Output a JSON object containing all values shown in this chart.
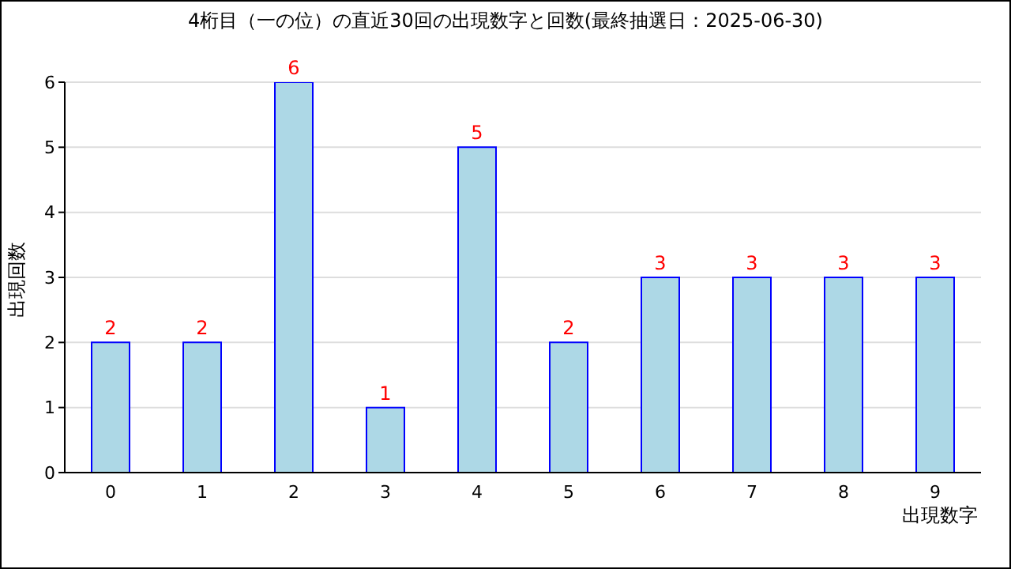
{
  "chart_data": {
    "type": "bar",
    "title": "4桁目（一の位）の直近30回の出現数字と回数(最終抽選日：2025-06-30)",
    "xlabel": "出現数字",
    "ylabel": "出現回数",
    "categories": [
      "0",
      "1",
      "2",
      "3",
      "4",
      "5",
      "6",
      "7",
      "8",
      "9"
    ],
    "series": [
      {
        "color": "#add8e6",
        "values": [
          2,
          2,
          6,
          1,
          5,
          2,
          3,
          3,
          3,
          3
        ]
      }
    ],
    "ylim": [
      0,
      6
    ],
    "yticks": [
      0,
      1,
      2,
      3,
      4,
      5,
      6
    ],
    "grid": "y",
    "data_labels": true
  }
}
